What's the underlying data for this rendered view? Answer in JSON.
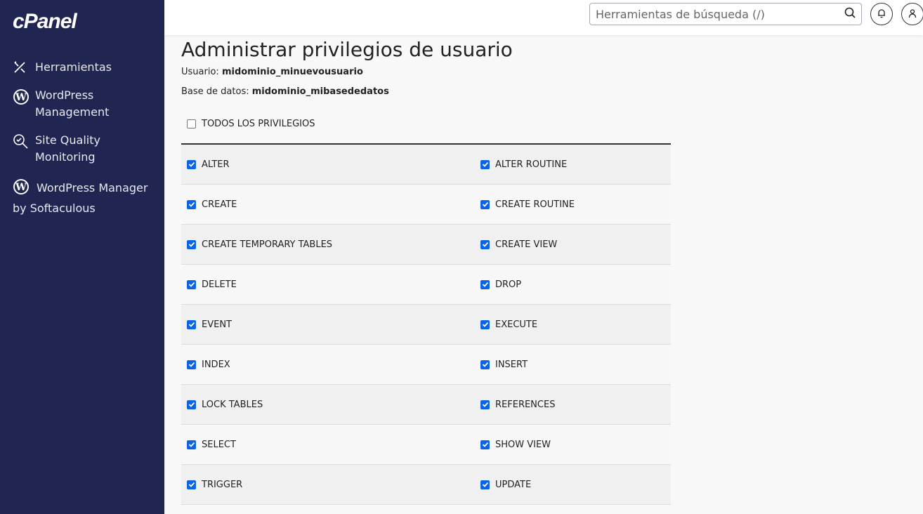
{
  "sidebar": {
    "logo": "cPanel",
    "items": [
      {
        "label": "Herramientas",
        "icon": "tools-icon"
      },
      {
        "label": "WordPress Management",
        "icon": "wordpress-icon"
      },
      {
        "label": "Site Quality Monitoring",
        "icon": "search-check-icon"
      },
      {
        "label": "WordPress Manager by Softaculous",
        "icon": "wordpress-icon"
      }
    ]
  },
  "header": {
    "search_placeholder": "Herramientas de búsqueda (/)"
  },
  "main": {
    "title": "Administrar privilegios de usuario",
    "user_label": "Usuario:",
    "user": "midominio_minuevousuario",
    "db_label": "Base de datos:",
    "db": "midominio_mibasededatos",
    "all_privileges": {
      "label": "TODOS LOS PRIVILEGIOS",
      "checked": false
    },
    "privileges": [
      [
        "ALTER",
        "ALTER ROUTINE"
      ],
      [
        "CREATE",
        "CREATE ROUTINE"
      ],
      [
        "CREATE TEMPORARY TABLES",
        "CREATE VIEW"
      ],
      [
        "DELETE",
        "DROP"
      ],
      [
        "EVENT",
        "EXECUTE"
      ],
      [
        "INDEX",
        "INSERT"
      ],
      [
        "LOCK TABLES",
        "REFERENCES"
      ],
      [
        "SELECT",
        "SHOW VIEW"
      ],
      [
        "TRIGGER",
        "UPDATE"
      ]
    ],
    "privileges_checked": true
  },
  "colors": {
    "sidebar": "#202552",
    "checkbox": "#0b63e5"
  }
}
